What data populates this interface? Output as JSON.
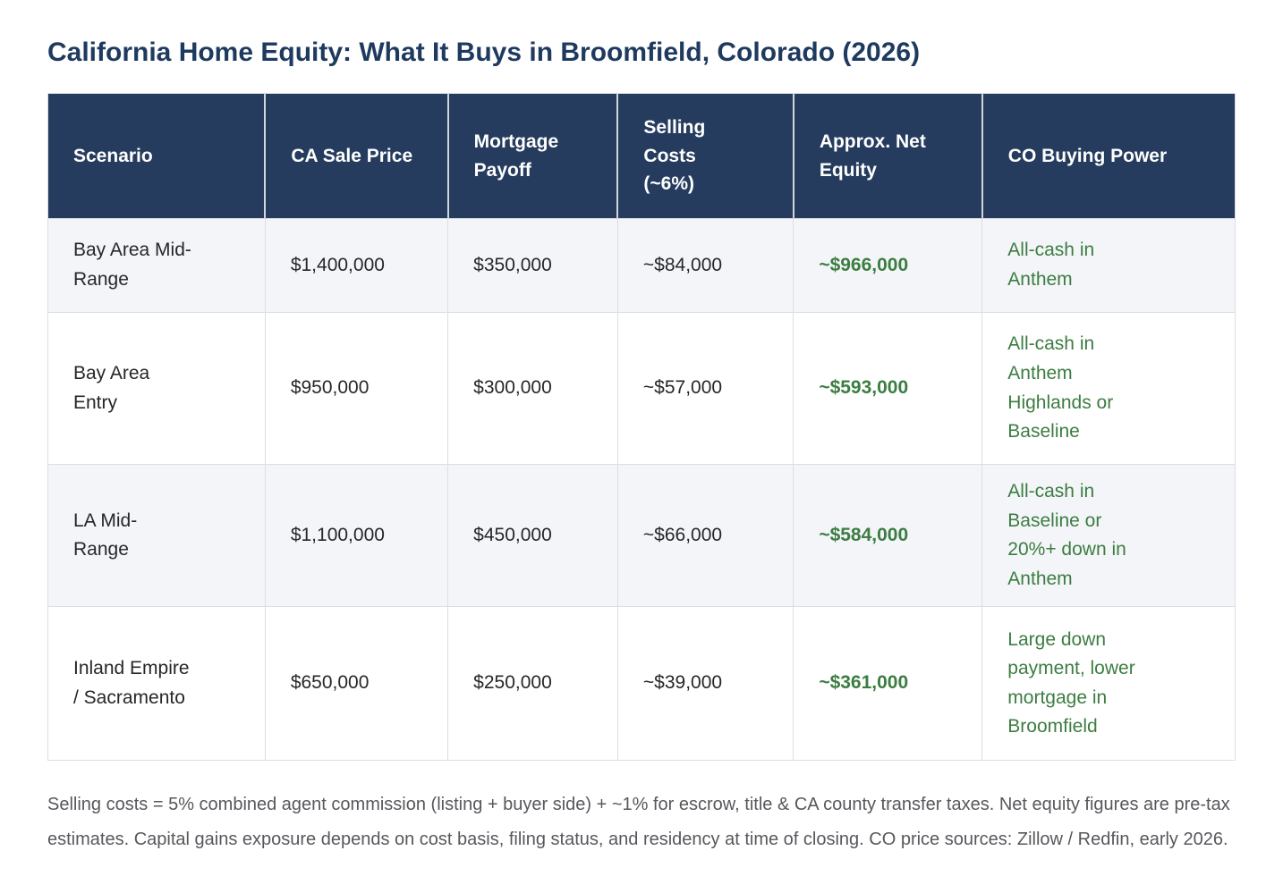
{
  "page": {
    "title": "California Home Equity: What It Buys in Broomfield, Colorado (2026)",
    "footnote": "Selling costs = 5% combined agent commission (listing + buyer side) + ~1% for escrow, title & CA county transfer taxes. Net equity figures are pre-tax estimates. Capital gains exposure depends on cost basis, filing status, and residency at time of closing. CO price sources: Zillow / Redfin, early 2026."
  },
  "colors": {
    "title_text": "#1e3a5f",
    "header_bg": "#253c5e",
    "header_text": "#ffffff",
    "accent_green": "#3c7d42",
    "row_alt_bg": "#f4f5f9",
    "row_bg": "#ffffff",
    "border": "#dcdee3",
    "body_text": "#26272a",
    "footnote_text": "#56585c"
  },
  "table": {
    "columns": [
      "Scenario",
      "CA Sale Price",
      "Mortgage Payoff",
      "Selling Costs (~6%)",
      "Approx. Net Equity",
      "CO Buying Power"
    ],
    "rows": [
      {
        "scenario": "Bay Area Mid-Range",
        "ca_sale_price": "$1,400,000",
        "mortgage_payoff": "$350,000",
        "selling_costs": "~$84,000",
        "net_equity": "~$966,000",
        "co_buying_power": "All-cash in Anthem"
      },
      {
        "scenario": "Bay Area Entry",
        "ca_sale_price": "$950,000",
        "mortgage_payoff": "$300,000",
        "selling_costs": "~$57,000",
        "net_equity": "~$593,000",
        "co_buying_power": "All-cash in Anthem Highlands or Baseline"
      },
      {
        "scenario": "LA Mid-Range",
        "ca_sale_price": "$1,100,000",
        "mortgage_payoff": "$450,000",
        "selling_costs": "~$66,000",
        "net_equity": "~$584,000",
        "co_buying_power": "All-cash in Baseline or 20%+ down in Anthem"
      },
      {
        "scenario": "Inland Empire / Sacramento",
        "ca_sale_price": "$650,000",
        "mortgage_payoff": "$250,000",
        "selling_costs": "~$39,000",
        "net_equity": "~$361,000",
        "co_buying_power": "Large down payment, lower mortgage in Broomfield"
      }
    ]
  }
}
